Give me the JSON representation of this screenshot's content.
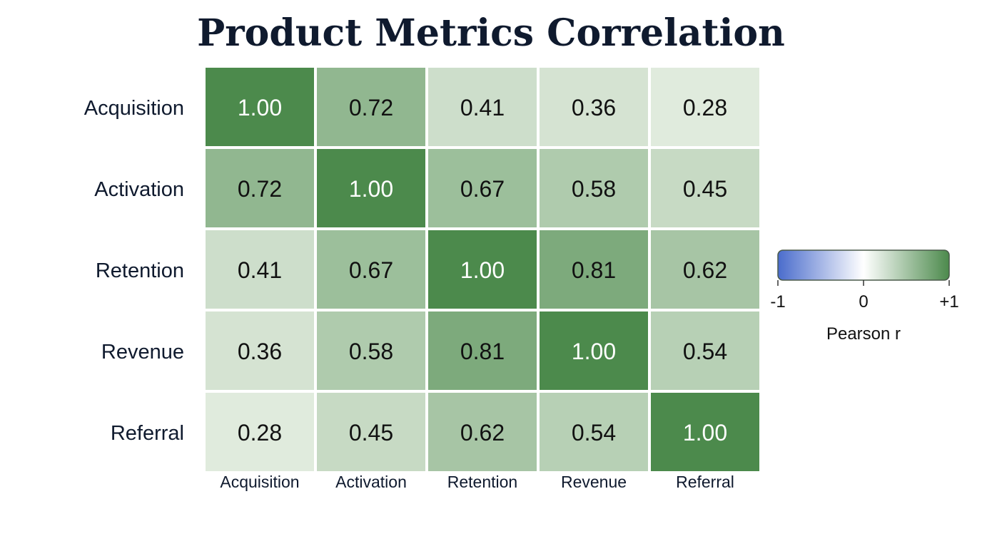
{
  "chart_data": {
    "type": "heatmap",
    "title": "Product Metrics Correlation",
    "rows": [
      "Acquisition",
      "Activation",
      "Retention",
      "Revenue",
      "Referral"
    ],
    "columns": [
      "Acquisition",
      "Activation",
      "Retention",
      "Revenue",
      "Referral"
    ],
    "values": [
      [
        1.0,
        0.72,
        0.41,
        0.36,
        0.28
      ],
      [
        0.72,
        1.0,
        0.67,
        0.58,
        0.45
      ],
      [
        0.41,
        0.67,
        1.0,
        0.81,
        0.62
      ],
      [
        0.36,
        0.58,
        0.81,
        1.0,
        0.54
      ],
      [
        0.28,
        0.45,
        0.62,
        0.54,
        1.0
      ]
    ],
    "value_format": "2 decimals",
    "colorbar": {
      "label": "Pearson r",
      "range": [
        -1,
        1
      ],
      "ticks": [
        "-1",
        "0",
        "+1"
      ],
      "colors": {
        "negative": "#4a6ccc",
        "zero": "#ffffff",
        "positive": "#4c8a4c"
      }
    },
    "legend_placement": "right"
  }
}
